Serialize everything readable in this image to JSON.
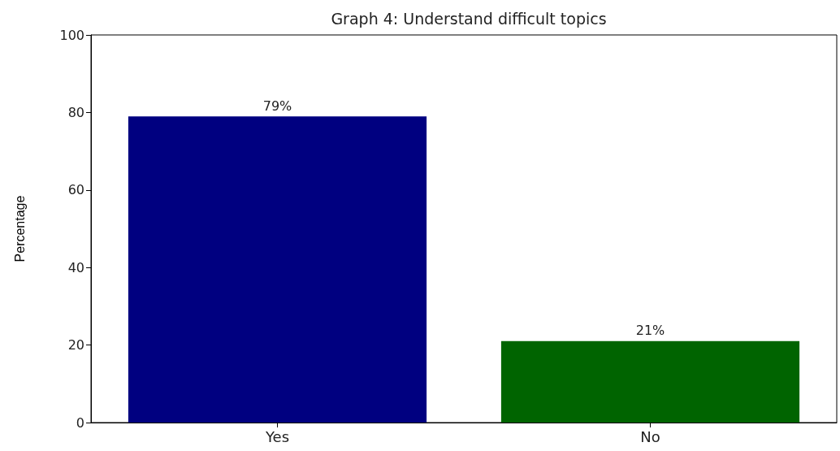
{
  "chart_data": {
    "type": "bar",
    "title": "Graph 4: Understand difficult topics",
    "ylabel": "Percentage",
    "categories": [
      "Yes",
      "No"
    ],
    "values": [
      79,
      21
    ],
    "colors": [
      "#000080",
      "#006400"
    ],
    "value_labels": [
      "79%",
      "21%"
    ],
    "ylim": [
      0,
      100
    ],
    "yticks": [
      0,
      20,
      40,
      60,
      80,
      100
    ],
    "grid": false
  }
}
